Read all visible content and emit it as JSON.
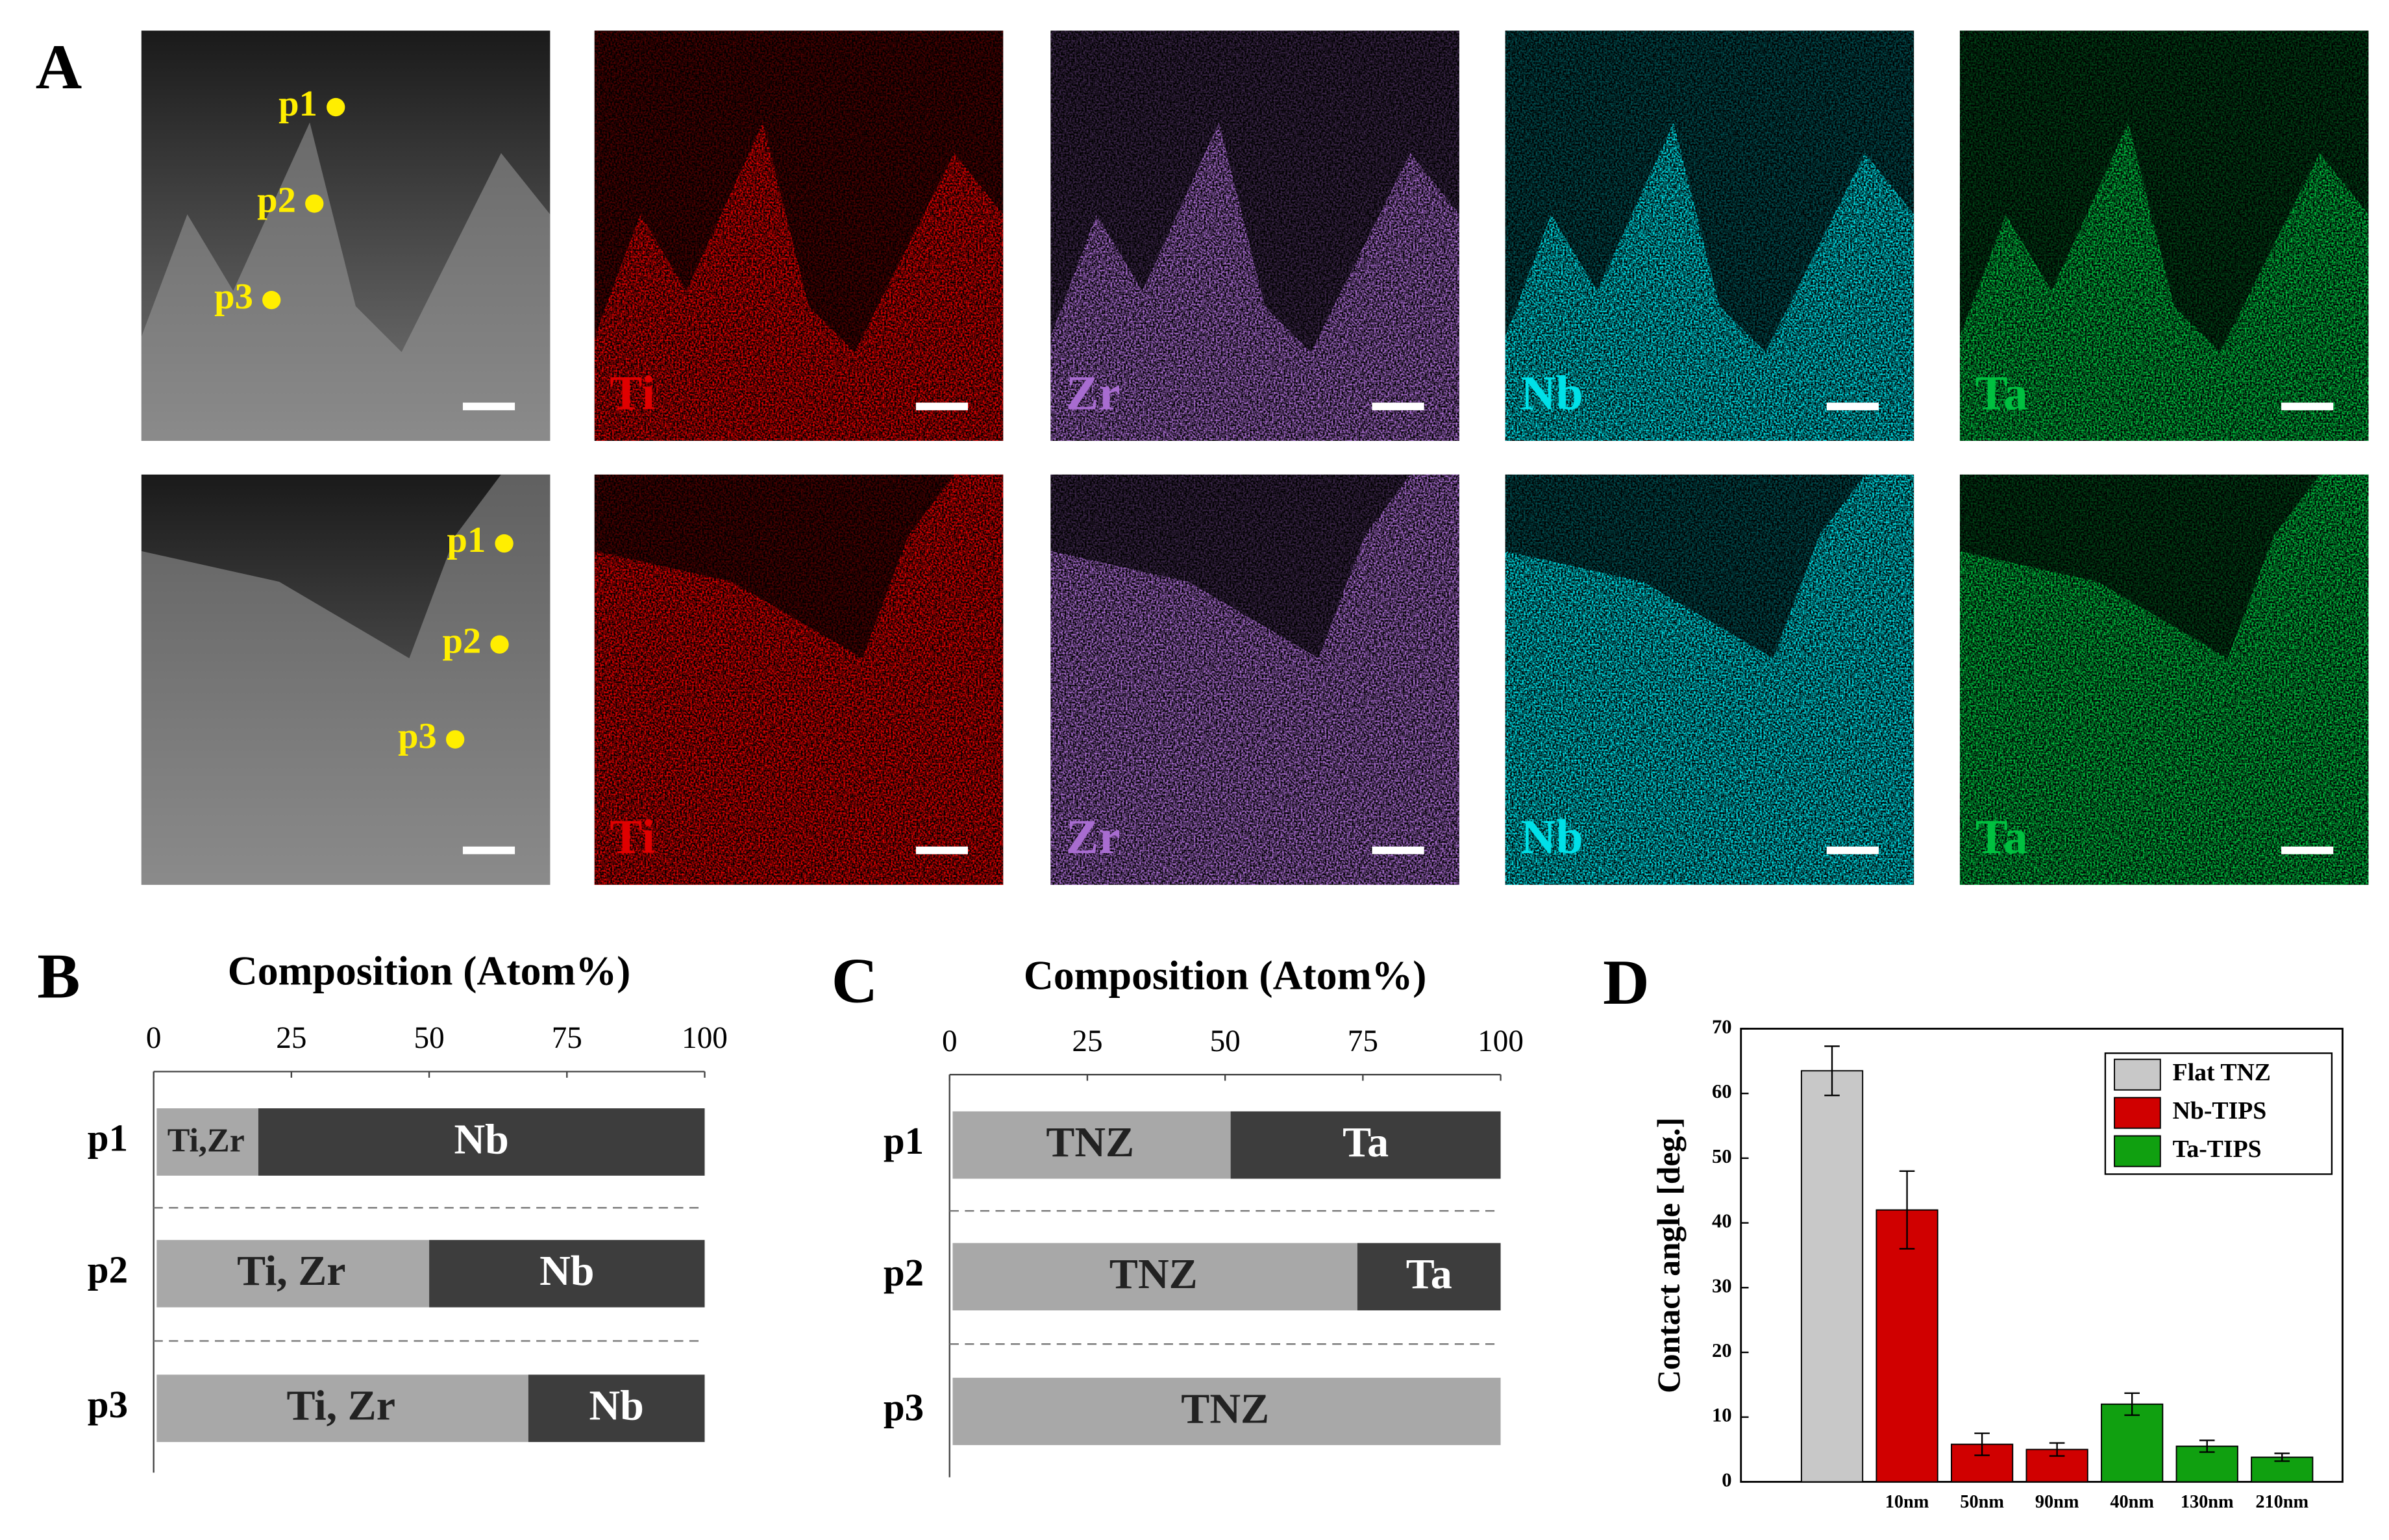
{
  "panel_a": {
    "label": "A",
    "rows": [
      {
        "points": [
          "p1",
          "p2",
          "p3"
        ],
        "elements": [
          "Ti",
          "Zr",
          "Nb",
          "Ta"
        ]
      },
      {
        "points": [
          "p1",
          "p2",
          "p3"
        ],
        "elements": [
          "Ti",
          "Zr",
          "Nb",
          "Ta"
        ]
      }
    ],
    "element_colors": [
      "#e00000",
      "#a86cd0",
      "#00e0e8",
      "#00c040"
    ],
    "point_color": "#ffee00"
  },
  "chart_data": [
    {
      "type": "bar",
      "panel_label": "B",
      "title": "Composition (Atom%)",
      "orientation": "horizontal",
      "stacked": true,
      "categories": [
        "p1",
        "p2",
        "p3"
      ],
      "series": [
        {
          "color": "#a8a8a8",
          "values": [
            19,
            50,
            68
          ],
          "labels": [
            "Ti,Zr",
            "Ti, Zr",
            "Ti, Zr"
          ]
        },
        {
          "color": "#3d3d3d",
          "values": [
            81,
            50,
            32
          ],
          "labels": [
            "Nb",
            "Nb",
            "Nb"
          ]
        }
      ],
      "xlim": [
        0,
        100
      ],
      "xticks": [
        0,
        25,
        50,
        75,
        100
      ]
    },
    {
      "type": "bar",
      "panel_label": "C",
      "title": "Composition (Atom%)",
      "orientation": "horizontal",
      "stacked": true,
      "categories": [
        "p1",
        "p2",
        "p3"
      ],
      "series": [
        {
          "color": "#a8a8a8",
          "values": [
            51,
            74,
            100
          ],
          "labels": [
            "TNZ",
            "TNZ",
            "TNZ"
          ]
        },
        {
          "color": "#3d3d3d",
          "values": [
            49,
            26,
            0
          ],
          "labels": [
            "Ta",
            "Ta",
            null
          ]
        }
      ],
      "xlim": [
        0,
        100
      ],
      "xticks": [
        0,
        25,
        50,
        75,
        100
      ]
    },
    {
      "type": "bar",
      "panel_label": "D",
      "y_label": "Contact angle [deg.]",
      "orientation": "vertical",
      "categories": [
        null,
        "10nm",
        "50nm",
        "90nm",
        "40nm",
        "130nm",
        "210nm"
      ],
      "series": [
        {
          "name": "Flat TNZ",
          "color": "#c8c8c8",
          "values": [
            63.5,
            null,
            null,
            null,
            null,
            null,
            null
          ],
          "errors": [
            3.8,
            null,
            null,
            null,
            null,
            null,
            null
          ]
        },
        {
          "name": "Nb-TIPS",
          "color": "#d00000",
          "values": [
            null,
            42,
            5.8,
            5,
            null,
            null,
            null
          ],
          "errors": [
            null,
            6,
            1.7,
            1,
            null,
            null,
            null
          ]
        },
        {
          "name": "Ta-TIPS",
          "color": "#10a010",
          "values": [
            null,
            null,
            null,
            null,
            12,
            5.5,
            3.8
          ],
          "errors": [
            null,
            null,
            null,
            null,
            1.7,
            0.9,
            0.6
          ]
        }
      ],
      "ylim": [
        0,
        70
      ],
      "yticks": [
        0,
        10,
        20,
        30,
        40,
        50,
        60,
        70
      ],
      "legend": "top-right"
    }
  ]
}
